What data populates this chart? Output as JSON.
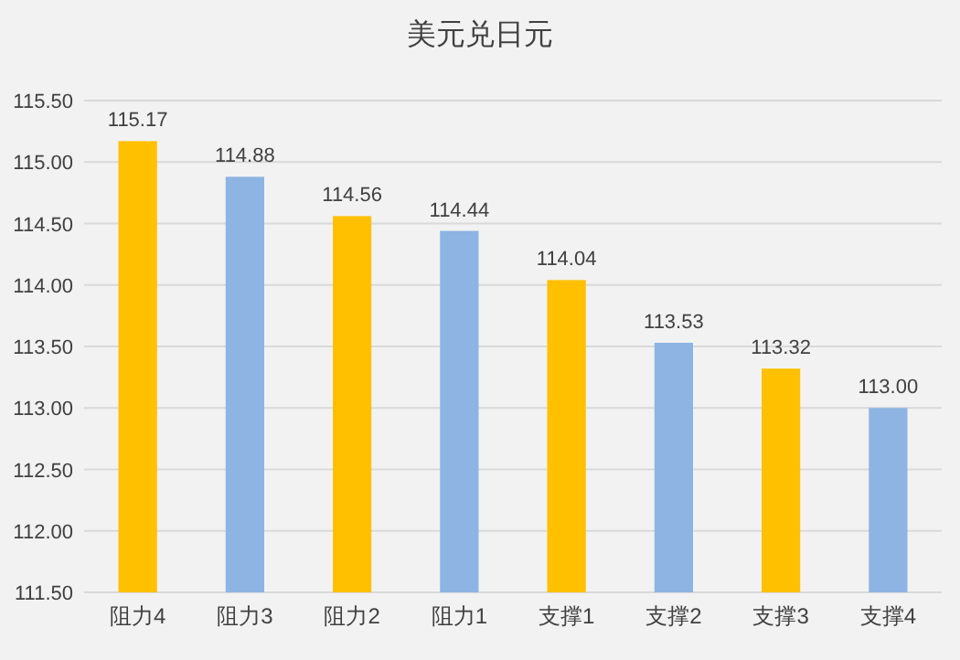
{
  "chart_data": {
    "type": "bar",
    "title": "美元兑日元",
    "categories": [
      "阻力4",
      "阻力3",
      "阻力2",
      "阻力1",
      "支撑1",
      "支撑2",
      "支撑3",
      "支撑4"
    ],
    "values": [
      115.17,
      114.88,
      114.56,
      114.44,
      114.04,
      113.53,
      113.32,
      113.0
    ],
    "value_labels": [
      "115.17",
      "114.88",
      "114.56",
      "114.44",
      "114.04",
      "113.53",
      "113.32",
      "113.00"
    ],
    "colors": [
      "#ffc000",
      "#8db4e2",
      "#ffc000",
      "#8db4e2",
      "#ffc000",
      "#8db4e2",
      "#ffc000",
      "#8db4e2"
    ],
    "ylim": [
      111.5,
      115.5
    ],
    "yticks": [
      {
        "value": 111.5,
        "label": "111.50"
      },
      {
        "value": 112,
        "label": "112.00"
      },
      {
        "value": 112.5,
        "label": "112.50"
      },
      {
        "value": 113,
        "label": "113.00"
      },
      {
        "value": 113.5,
        "label": "113.50"
      },
      {
        "value": 114,
        "label": "114.00"
      },
      {
        "value": 114.5,
        "label": "114.50"
      },
      {
        "value": 115,
        "label": "115.00"
      },
      {
        "value": 115.5,
        "label": "115.50"
      }
    ],
    "grid": "y"
  }
}
